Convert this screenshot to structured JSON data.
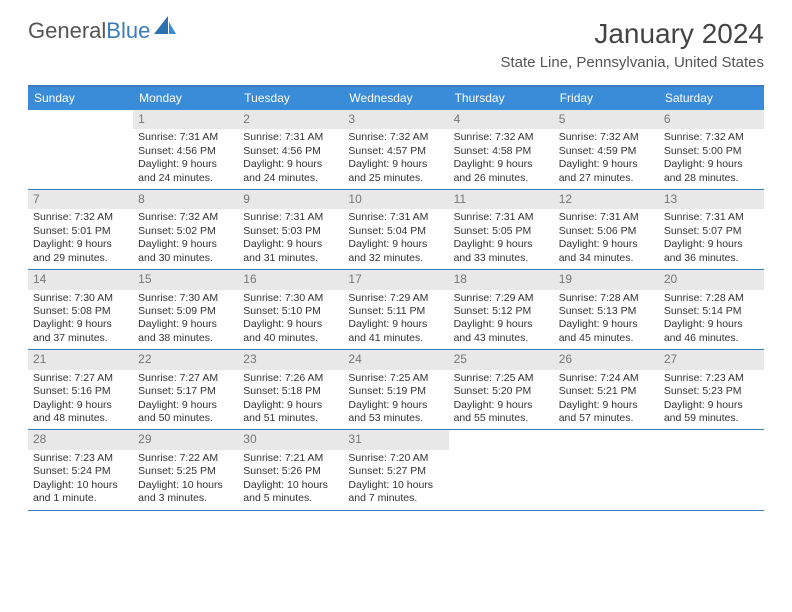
{
  "brand": {
    "name_a": "General",
    "name_b": "Blue"
  },
  "title": "January 2024",
  "location": "State Line, Pennsylvania, United States",
  "colors": {
    "header_bar": "#3a8bd8",
    "rule": "#3a7bbf",
    "daynum_bg": "#e8e8e8",
    "text": "#333333",
    "muted": "#777777",
    "bg": "#ffffff"
  },
  "weekdays": [
    "Sunday",
    "Monday",
    "Tuesday",
    "Wednesday",
    "Thursday",
    "Friday",
    "Saturday"
  ],
  "weeks": [
    [
      {
        "n": "",
        "sunrise": "",
        "sunset": "",
        "daylight": ""
      },
      {
        "n": "1",
        "sunrise": "Sunrise: 7:31 AM",
        "sunset": "Sunset: 4:56 PM",
        "daylight": "Daylight: 9 hours and 24 minutes."
      },
      {
        "n": "2",
        "sunrise": "Sunrise: 7:31 AM",
        "sunset": "Sunset: 4:56 PM",
        "daylight": "Daylight: 9 hours and 24 minutes."
      },
      {
        "n": "3",
        "sunrise": "Sunrise: 7:32 AM",
        "sunset": "Sunset: 4:57 PM",
        "daylight": "Daylight: 9 hours and 25 minutes."
      },
      {
        "n": "4",
        "sunrise": "Sunrise: 7:32 AM",
        "sunset": "Sunset: 4:58 PM",
        "daylight": "Daylight: 9 hours and 26 minutes."
      },
      {
        "n": "5",
        "sunrise": "Sunrise: 7:32 AM",
        "sunset": "Sunset: 4:59 PM",
        "daylight": "Daylight: 9 hours and 27 minutes."
      },
      {
        "n": "6",
        "sunrise": "Sunrise: 7:32 AM",
        "sunset": "Sunset: 5:00 PM",
        "daylight": "Daylight: 9 hours and 28 minutes."
      }
    ],
    [
      {
        "n": "7",
        "sunrise": "Sunrise: 7:32 AM",
        "sunset": "Sunset: 5:01 PM",
        "daylight": "Daylight: 9 hours and 29 minutes."
      },
      {
        "n": "8",
        "sunrise": "Sunrise: 7:32 AM",
        "sunset": "Sunset: 5:02 PM",
        "daylight": "Daylight: 9 hours and 30 minutes."
      },
      {
        "n": "9",
        "sunrise": "Sunrise: 7:31 AM",
        "sunset": "Sunset: 5:03 PM",
        "daylight": "Daylight: 9 hours and 31 minutes."
      },
      {
        "n": "10",
        "sunrise": "Sunrise: 7:31 AM",
        "sunset": "Sunset: 5:04 PM",
        "daylight": "Daylight: 9 hours and 32 minutes."
      },
      {
        "n": "11",
        "sunrise": "Sunrise: 7:31 AM",
        "sunset": "Sunset: 5:05 PM",
        "daylight": "Daylight: 9 hours and 33 minutes."
      },
      {
        "n": "12",
        "sunrise": "Sunrise: 7:31 AM",
        "sunset": "Sunset: 5:06 PM",
        "daylight": "Daylight: 9 hours and 34 minutes."
      },
      {
        "n": "13",
        "sunrise": "Sunrise: 7:31 AM",
        "sunset": "Sunset: 5:07 PM",
        "daylight": "Daylight: 9 hours and 36 minutes."
      }
    ],
    [
      {
        "n": "14",
        "sunrise": "Sunrise: 7:30 AM",
        "sunset": "Sunset: 5:08 PM",
        "daylight": "Daylight: 9 hours and 37 minutes."
      },
      {
        "n": "15",
        "sunrise": "Sunrise: 7:30 AM",
        "sunset": "Sunset: 5:09 PM",
        "daylight": "Daylight: 9 hours and 38 minutes."
      },
      {
        "n": "16",
        "sunrise": "Sunrise: 7:30 AM",
        "sunset": "Sunset: 5:10 PM",
        "daylight": "Daylight: 9 hours and 40 minutes."
      },
      {
        "n": "17",
        "sunrise": "Sunrise: 7:29 AM",
        "sunset": "Sunset: 5:11 PM",
        "daylight": "Daylight: 9 hours and 41 minutes."
      },
      {
        "n": "18",
        "sunrise": "Sunrise: 7:29 AM",
        "sunset": "Sunset: 5:12 PM",
        "daylight": "Daylight: 9 hours and 43 minutes."
      },
      {
        "n": "19",
        "sunrise": "Sunrise: 7:28 AM",
        "sunset": "Sunset: 5:13 PM",
        "daylight": "Daylight: 9 hours and 45 minutes."
      },
      {
        "n": "20",
        "sunrise": "Sunrise: 7:28 AM",
        "sunset": "Sunset: 5:14 PM",
        "daylight": "Daylight: 9 hours and 46 minutes."
      }
    ],
    [
      {
        "n": "21",
        "sunrise": "Sunrise: 7:27 AM",
        "sunset": "Sunset: 5:16 PM",
        "daylight": "Daylight: 9 hours and 48 minutes."
      },
      {
        "n": "22",
        "sunrise": "Sunrise: 7:27 AM",
        "sunset": "Sunset: 5:17 PM",
        "daylight": "Daylight: 9 hours and 50 minutes."
      },
      {
        "n": "23",
        "sunrise": "Sunrise: 7:26 AM",
        "sunset": "Sunset: 5:18 PM",
        "daylight": "Daylight: 9 hours and 51 minutes."
      },
      {
        "n": "24",
        "sunrise": "Sunrise: 7:25 AM",
        "sunset": "Sunset: 5:19 PM",
        "daylight": "Daylight: 9 hours and 53 minutes."
      },
      {
        "n": "25",
        "sunrise": "Sunrise: 7:25 AM",
        "sunset": "Sunset: 5:20 PM",
        "daylight": "Daylight: 9 hours and 55 minutes."
      },
      {
        "n": "26",
        "sunrise": "Sunrise: 7:24 AM",
        "sunset": "Sunset: 5:21 PM",
        "daylight": "Daylight: 9 hours and 57 minutes."
      },
      {
        "n": "27",
        "sunrise": "Sunrise: 7:23 AM",
        "sunset": "Sunset: 5:23 PM",
        "daylight": "Daylight: 9 hours and 59 minutes."
      }
    ],
    [
      {
        "n": "28",
        "sunrise": "Sunrise: 7:23 AM",
        "sunset": "Sunset: 5:24 PM",
        "daylight": "Daylight: 10 hours and 1 minute."
      },
      {
        "n": "29",
        "sunrise": "Sunrise: 7:22 AM",
        "sunset": "Sunset: 5:25 PM",
        "daylight": "Daylight: 10 hours and 3 minutes."
      },
      {
        "n": "30",
        "sunrise": "Sunrise: 7:21 AM",
        "sunset": "Sunset: 5:26 PM",
        "daylight": "Daylight: 10 hours and 5 minutes."
      },
      {
        "n": "31",
        "sunrise": "Sunrise: 7:20 AM",
        "sunset": "Sunset: 5:27 PM",
        "daylight": "Daylight: 10 hours and 7 minutes."
      },
      {
        "n": "",
        "sunrise": "",
        "sunset": "",
        "daylight": ""
      },
      {
        "n": "",
        "sunrise": "",
        "sunset": "",
        "daylight": ""
      },
      {
        "n": "",
        "sunrise": "",
        "sunset": "",
        "daylight": ""
      }
    ]
  ]
}
